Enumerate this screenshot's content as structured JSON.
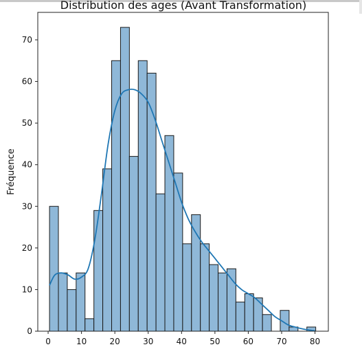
{
  "chart_data": {
    "type": "bar",
    "title": "Distribution des ages (Avant Transformation)",
    "xlabel": "",
    "ylabel": "Fréquence",
    "xlim": [
      -3.1,
      84.0
    ],
    "ylim": [
      0,
      76.6
    ],
    "x_ticks": [
      0,
      10,
      20,
      30,
      40,
      50,
      60,
      70,
      80
    ],
    "y_ticks": [
      0,
      10,
      20,
      30,
      40,
      50,
      60,
      70
    ],
    "bin_width": 2.66,
    "bin_start": 0.42,
    "values": [
      30,
      14,
      10,
      14,
      3,
      29,
      39,
      65,
      73,
      42,
      65,
      62,
      33,
      47,
      38,
      21,
      28,
      21,
      16,
      14,
      15,
      7,
      9,
      8,
      4,
      0,
      5,
      1,
      0,
      1
    ],
    "kde": {
      "x": [
        0.4,
        2,
        4,
        6,
        8,
        10,
        12,
        14,
        16,
        18,
        20,
        22,
        24,
        26,
        28,
        30,
        32,
        34,
        36,
        38,
        40,
        42,
        44,
        46,
        48,
        50,
        52,
        54,
        56,
        58,
        60,
        62,
        64,
        66,
        68,
        70,
        72,
        74,
        76,
        78,
        80
      ],
      "y": [
        11,
        13.5,
        14,
        13.5,
        12.5,
        13,
        15,
        22,
        33,
        45,
        53,
        57,
        58,
        58,
        57,
        55,
        51,
        46,
        41,
        36,
        31,
        27,
        24,
        21.5,
        19.5,
        17.5,
        15.5,
        13.5,
        11.5,
        10,
        9,
        8,
        6.5,
        5,
        3.5,
        2.5,
        1.5,
        1,
        0.6,
        0.3,
        0.1
      ]
    },
    "grid": false,
    "legend": "none",
    "colors": {
      "bar_fill": "#8fb8d8",
      "bar_edge": "#1a1a1a",
      "kde_line": "#1f77b4"
    }
  }
}
